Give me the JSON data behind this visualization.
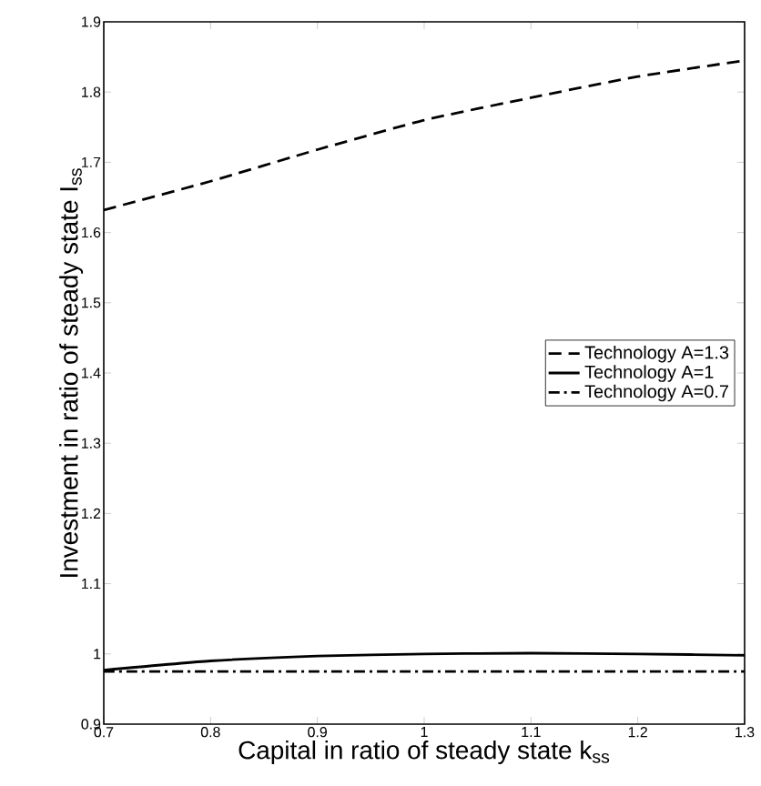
{
  "chart_data": {
    "type": "line",
    "xlabel": "Capital in ratio of steady state k$_{ss}$",
    "ylabel": "Investment in ratio of steady state I$_{ss}$",
    "x": [
      0.7,
      0.8,
      0.9,
      1.0,
      1.1,
      1.2,
      1.3
    ],
    "series": [
      {
        "name": "Technology A=1.3",
        "color": "#000000",
        "line_style": "dashed",
        "values": [
          1.632,
          1.673,
          1.718,
          1.76,
          1.792,
          1.822,
          1.845
        ]
      },
      {
        "name": "Technology A=1",
        "color": "#000000",
        "line_style": "solid",
        "values": [
          0.977,
          0.99,
          0.997,
          1.0,
          1.001,
          1.0,
          0.998
        ]
      },
      {
        "name": "Technology A=0.7",
        "color": "#000000",
        "line_style": "dashdot",
        "values": [
          0.975,
          0.975,
          0.975,
          0.975,
          0.975,
          0.975,
          0.975
        ]
      }
    ],
    "xlim": [
      0.7,
      1.3
    ],
    "ylim": [
      0.9,
      1.9
    ],
    "xticks": [
      0.7,
      0.8,
      0.9,
      1,
      1.1,
      1.2,
      1.3
    ],
    "yticks": [
      0.9,
      1,
      1.1,
      1.2,
      1.3,
      1.4,
      1.5,
      1.6,
      1.7,
      1.8,
      1.9
    ],
    "legend": "right",
    "grid": false,
    "marker": "none"
  }
}
